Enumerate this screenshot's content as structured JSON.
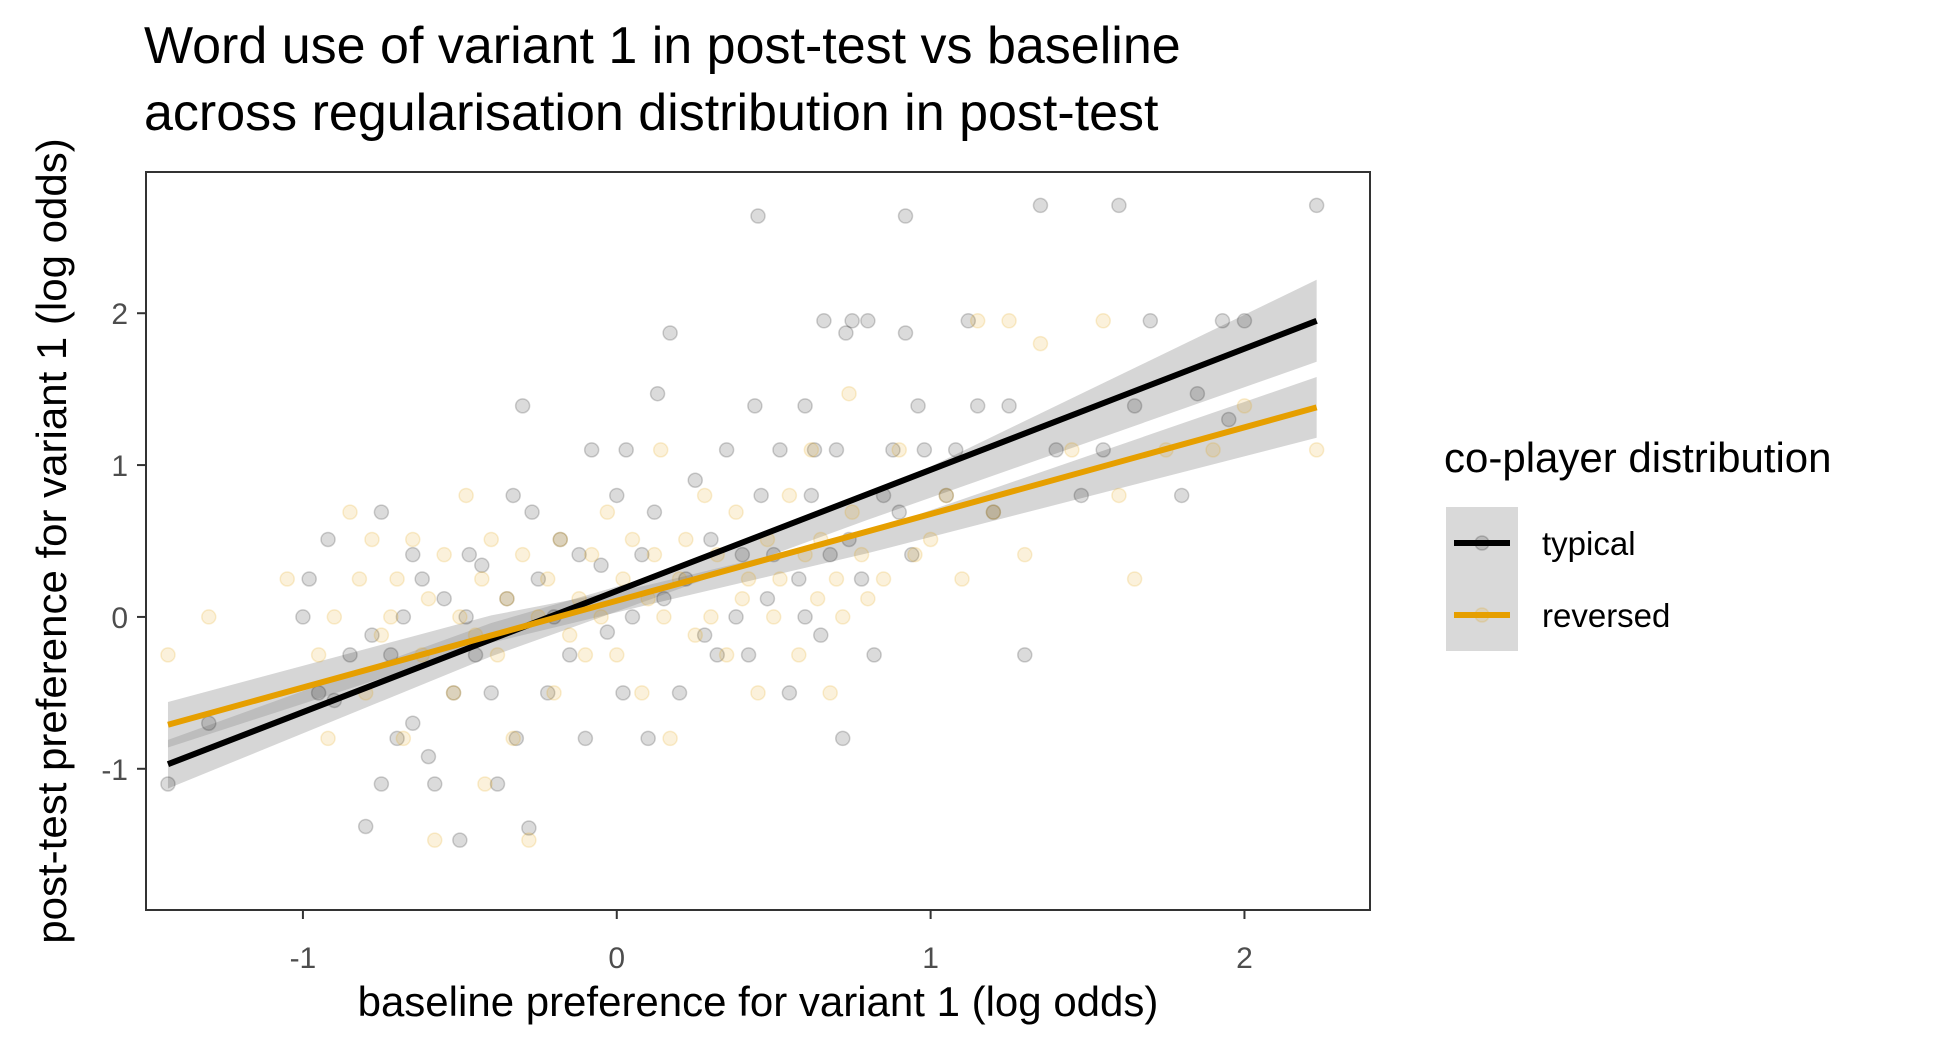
{
  "chart_data": {
    "type": "scatter",
    "title": "Word use of variant 1 in post-test vs baseline across regularisation distribution in post-test",
    "title_lines": [
      "Word use of variant 1 in post-test vs baseline",
      "across regularisation distribution in post-test"
    ],
    "xlabel": "baseline preference for variant 1 (log odds)",
    "ylabel": "post-test preference for variant 1 (log odds)",
    "xlim": [
      -1.5,
      2.4
    ],
    "ylim": [
      -1.93,
      2.93
    ],
    "x_ticks": [
      -1,
      0,
      1,
      2
    ],
    "x_tick_labels": [
      "-1",
      "0",
      "1",
      "2"
    ],
    "y_ticks": [
      -1,
      0,
      1,
      2
    ],
    "y_tick_labels": [
      "-1",
      "0",
      "1",
      "2"
    ],
    "grid": false,
    "legend": {
      "title": "co-player distribution",
      "position": "right",
      "entries": [
        "typical",
        "reversed"
      ]
    },
    "colors": {
      "typical": "#000000",
      "reversed": "#E69F00",
      "ribbon": "#999999",
      "panel_border": "#333333"
    },
    "series": [
      {
        "name": "typical",
        "color": "#000000",
        "fit": {
          "x": [
            -1.43,
            2.23
          ],
          "y": [
            -0.97,
            1.95
          ]
        },
        "ribbon": {
          "x": [
            -1.43,
            -0.4,
            0.1,
            0.8,
            2.23
          ],
          "lower": [
            -1.13,
            -0.26,
            0.11,
            0.64,
            1.68
          ],
          "upper": [
            -0.81,
            -0.04,
            0.26,
            0.79,
            2.22
          ]
        },
        "points": [
          [
            -1.43,
            -1.1
          ],
          [
            -1.3,
            -0.7
          ],
          [
            -1.0,
            0.0
          ],
          [
            -0.98,
            0.25
          ],
          [
            -0.95,
            -0.5
          ],
          [
            -0.92,
            0.51
          ],
          [
            -0.9,
            -0.55
          ],
          [
            -0.85,
            -0.25
          ],
          [
            -0.8,
            -1.38
          ],
          [
            -0.78,
            -0.12
          ],
          [
            -0.75,
            0.69
          ],
          [
            -0.75,
            -1.1
          ],
          [
            -0.72,
            -0.25
          ],
          [
            -0.7,
            -0.8
          ],
          [
            -0.68,
            0.0
          ],
          [
            -0.65,
            0.41
          ],
          [
            -0.65,
            -0.7
          ],
          [
            -0.62,
            0.25
          ],
          [
            -0.6,
            -0.92
          ],
          [
            -0.58,
            -1.1
          ],
          [
            -0.55,
            0.12
          ],
          [
            -0.52,
            -0.5
          ],
          [
            -0.5,
            -1.47
          ],
          [
            -0.48,
            0.0
          ],
          [
            -0.47,
            0.41
          ],
          [
            -0.45,
            -0.25
          ],
          [
            -0.43,
            0.34
          ],
          [
            -0.4,
            -0.5
          ],
          [
            -0.38,
            -1.1
          ],
          [
            -0.35,
            0.12
          ],
          [
            -0.33,
            0.8
          ],
          [
            -0.32,
            -0.8
          ],
          [
            -0.3,
            1.39
          ],
          [
            -0.28,
            -1.39
          ],
          [
            -0.27,
            0.69
          ],
          [
            -0.25,
            0.25
          ],
          [
            -0.22,
            -0.5
          ],
          [
            -0.2,
            0.0
          ],
          [
            -0.18,
            0.51
          ],
          [
            -0.15,
            -0.25
          ],
          [
            -0.12,
            0.41
          ],
          [
            -0.1,
            -0.8
          ],
          [
            -0.08,
            1.1
          ],
          [
            -0.05,
            0.34
          ],
          [
            -0.03,
            -0.1
          ],
          [
            0.0,
            0.8
          ],
          [
            0.02,
            -0.5
          ],
          [
            0.03,
            1.1
          ],
          [
            0.05,
            0.0
          ],
          [
            0.08,
            0.41
          ],
          [
            0.1,
            -0.8
          ],
          [
            0.12,
            0.69
          ],
          [
            0.13,
            1.47
          ],
          [
            0.15,
            0.12
          ],
          [
            0.17,
            1.87
          ],
          [
            0.2,
            -0.5
          ],
          [
            0.22,
            0.25
          ],
          [
            0.25,
            0.9
          ],
          [
            0.28,
            -0.12
          ],
          [
            0.3,
            0.51
          ],
          [
            0.32,
            -0.25
          ],
          [
            0.35,
            1.1
          ],
          [
            0.38,
            0.0
          ],
          [
            0.4,
            0.41
          ],
          [
            0.42,
            -0.25
          ],
          [
            0.44,
            1.39
          ],
          [
            0.45,
            2.64
          ],
          [
            0.46,
            0.8
          ],
          [
            0.48,
            0.12
          ],
          [
            0.5,
            0.41
          ],
          [
            0.52,
            1.1
          ],
          [
            0.55,
            -0.5
          ],
          [
            0.58,
            0.25
          ],
          [
            0.6,
            0.0
          ],
          [
            0.6,
            1.39
          ],
          [
            0.62,
            0.8
          ],
          [
            0.63,
            1.1
          ],
          [
            0.65,
            -0.12
          ],
          [
            0.66,
            1.95
          ],
          [
            0.68,
            0.41
          ],
          [
            0.7,
            1.1
          ],
          [
            0.72,
            -0.8
          ],
          [
            0.73,
            1.87
          ],
          [
            0.74,
            0.51
          ],
          [
            0.75,
            1.95
          ],
          [
            0.78,
            0.25
          ],
          [
            0.8,
            1.95
          ],
          [
            0.82,
            -0.25
          ],
          [
            0.85,
            0.8
          ],
          [
            0.88,
            1.1
          ],
          [
            0.9,
            0.69
          ],
          [
            0.92,
            1.87
          ],
          [
            0.92,
            2.64
          ],
          [
            0.94,
            0.41
          ],
          [
            0.96,
            1.39
          ],
          [
            0.98,
            1.1
          ],
          [
            1.05,
            0.8
          ],
          [
            1.08,
            1.1
          ],
          [
            1.12,
            1.95
          ],
          [
            1.15,
            1.39
          ],
          [
            1.2,
            0.69
          ],
          [
            1.25,
            1.39
          ],
          [
            1.3,
            -0.25
          ],
          [
            1.35,
            2.71
          ],
          [
            1.4,
            1.1
          ],
          [
            1.48,
            0.8
          ],
          [
            1.55,
            1.1
          ],
          [
            1.6,
            2.71
          ],
          [
            1.65,
            1.39
          ],
          [
            1.7,
            1.95
          ],
          [
            1.8,
            0.8
          ],
          [
            1.85,
            1.47
          ],
          [
            1.93,
            1.95
          ],
          [
            1.95,
            1.3
          ],
          [
            2.0,
            1.95
          ],
          [
            2.23,
            2.71
          ]
        ]
      },
      {
        "name": "reversed",
        "color": "#E69F00",
        "fit": {
          "x": [
            -1.43,
            2.23
          ],
          "y": [
            -0.71,
            1.38
          ]
        },
        "ribbon": {
          "x": [
            -1.43,
            -0.4,
            0.1,
            0.8,
            2.23
          ],
          "lower": [
            -0.86,
            -0.17,
            0.08,
            0.42,
            1.18
          ],
          "upper": [
            -0.56,
            0.01,
            0.21,
            0.56,
            1.58
          ]
        },
        "points": [
          [
            -1.43,
            -0.25
          ],
          [
            -1.3,
            0.0
          ],
          [
            -1.05,
            0.25
          ],
          [
            -0.95,
            -0.25
          ],
          [
            -0.92,
            -0.8
          ],
          [
            -0.9,
            0.0
          ],
          [
            -0.85,
            0.69
          ],
          [
            -0.82,
            0.25
          ],
          [
            -0.8,
            -0.5
          ],
          [
            -0.78,
            0.51
          ],
          [
            -0.75,
            -0.12
          ],
          [
            -0.72,
            0.0
          ],
          [
            -0.7,
            0.25
          ],
          [
            -0.68,
            -0.8
          ],
          [
            -0.65,
            0.51
          ],
          [
            -0.62,
            -0.25
          ],
          [
            -0.6,
            0.12
          ],
          [
            -0.58,
            -1.47
          ],
          [
            -0.55,
            0.41
          ],
          [
            -0.52,
            -0.5
          ],
          [
            -0.5,
            0.0
          ],
          [
            -0.48,
            0.8
          ],
          [
            -0.45,
            -0.12
          ],
          [
            -0.43,
            0.25
          ],
          [
            -0.42,
            -1.1
          ],
          [
            -0.4,
            0.51
          ],
          [
            -0.38,
            -0.25
          ],
          [
            -0.35,
            0.12
          ],
          [
            -0.33,
            -0.8
          ],
          [
            -0.3,
            0.41
          ],
          [
            -0.28,
            -1.47
          ],
          [
            -0.25,
            0.0
          ],
          [
            -0.22,
            0.25
          ],
          [
            -0.2,
            -0.5
          ],
          [
            -0.18,
            0.51
          ],
          [
            -0.15,
            -0.12
          ],
          [
            -0.12,
            0.12
          ],
          [
            -0.1,
            -0.25
          ],
          [
            -0.08,
            0.41
          ],
          [
            -0.05,
            0.0
          ],
          [
            -0.03,
            0.69
          ],
          [
            0.0,
            -0.25
          ],
          [
            0.02,
            0.25
          ],
          [
            0.05,
            0.51
          ],
          [
            0.08,
            -0.5
          ],
          [
            0.1,
            0.12
          ],
          [
            0.12,
            0.41
          ],
          [
            0.14,
            1.1
          ],
          [
            0.15,
            0.0
          ],
          [
            0.17,
            -0.8
          ],
          [
            0.2,
            0.25
          ],
          [
            0.22,
            0.51
          ],
          [
            0.25,
            -0.12
          ],
          [
            0.28,
            0.8
          ],
          [
            0.3,
            0.0
          ],
          [
            0.32,
            0.41
          ],
          [
            0.35,
            -0.25
          ],
          [
            0.38,
            0.69
          ],
          [
            0.4,
            0.12
          ],
          [
            0.42,
            0.25
          ],
          [
            0.45,
            -0.5
          ],
          [
            0.48,
            0.51
          ],
          [
            0.5,
            0.0
          ],
          [
            0.52,
            0.25
          ],
          [
            0.55,
            0.8
          ],
          [
            0.58,
            -0.25
          ],
          [
            0.6,
            0.41
          ],
          [
            0.62,
            1.1
          ],
          [
            0.64,
            0.12
          ],
          [
            0.65,
            0.51
          ],
          [
            0.68,
            -0.5
          ],
          [
            0.7,
            0.25
          ],
          [
            0.72,
            0.0
          ],
          [
            0.74,
            1.47
          ],
          [
            0.75,
            0.69
          ],
          [
            0.78,
            0.41
          ],
          [
            0.8,
            0.12
          ],
          [
            0.85,
            0.25
          ],
          [
            0.9,
            1.1
          ],
          [
            0.95,
            0.41
          ],
          [
            1.0,
            0.51
          ],
          [
            1.05,
            0.8
          ],
          [
            1.1,
            0.25
          ],
          [
            1.15,
            1.95
          ],
          [
            1.2,
            0.69
          ],
          [
            1.25,
            1.95
          ],
          [
            1.3,
            0.41
          ],
          [
            1.35,
            1.8
          ],
          [
            1.45,
            1.1
          ],
          [
            1.55,
            1.95
          ],
          [
            1.6,
            0.8
          ],
          [
            1.65,
            0.25
          ],
          [
            1.75,
            1.1
          ],
          [
            1.9,
            1.1
          ],
          [
            2.0,
            1.39
          ],
          [
            2.23,
            1.1
          ]
        ]
      }
    ]
  }
}
